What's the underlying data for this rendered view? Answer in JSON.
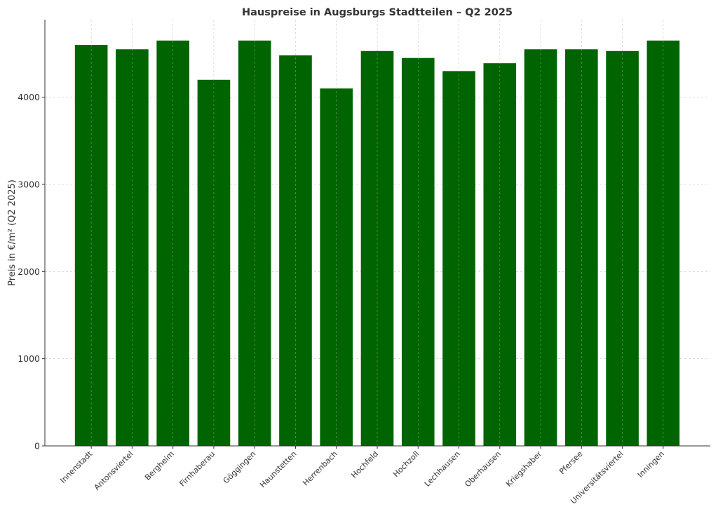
{
  "chart_data": {
    "type": "bar",
    "title": "Hauspreise in Augsburgs Stadtteilen – Q2 2025",
    "xlabel": "",
    "ylabel": "Preis in €/m² (Q2 2025)",
    "categories": [
      "Innenstadt",
      "Antonsviertel",
      "Bergheim",
      "Firnhaberau",
      "Göggingen",
      "Haunstetten",
      "Herrenbach",
      "Hochfeld",
      "Hochzoll",
      "Lechhausen",
      "Oberhausen",
      "Kriegshaber",
      "Pfersee",
      "Universitätsviertel",
      "Inningen"
    ],
    "values": [
      4600,
      4550,
      4650,
      4200,
      4650,
      4480,
      4100,
      4530,
      4450,
      4300,
      4390,
      4550,
      4550,
      4530,
      4650
    ],
    "ylim": [
      0,
      4890
    ],
    "yticks": [
      0,
      1000,
      2000,
      3000,
      4000
    ],
    "grid": true,
    "bar_color": "#006400"
  }
}
